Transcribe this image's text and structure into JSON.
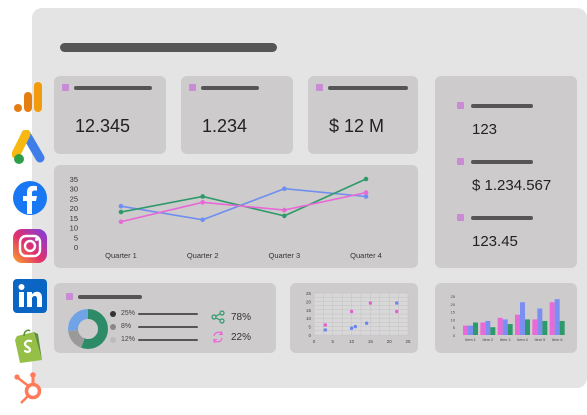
{
  "kpis": [
    "12.345",
    "1.234",
    "$ 12 M"
  ],
  "side_stats": [
    "123",
    "$ 1.234.567",
    "123.45"
  ],
  "chart_data": [
    {
      "type": "line",
      "categories": [
        "Quarter 1",
        "Quarter 2",
        "Quarter 3",
        "Quarter 4"
      ],
      "ylim": [
        0,
        35
      ],
      "yticks": [
        "35",
        "30",
        "25",
        "20",
        "15",
        "10",
        "5",
        "0"
      ],
      "series": [
        {
          "color": "#6f8ff0",
          "values": [
            21,
            14,
            30,
            26
          ]
        },
        {
          "color": "#2e9a6b",
          "values": [
            18,
            26,
            16,
            35
          ]
        },
        {
          "color": "#e868d6",
          "values": [
            13,
            23,
            19,
            28
          ]
        }
      ]
    },
    {
      "type": "pie",
      "slices": [
        {
          "label": "25%",
          "value": 25,
          "color": "#2e8b68"
        },
        {
          "label": "8%",
          "value": 8,
          "color": "#9a9a9a"
        },
        {
          "label": "12%",
          "value": 12,
          "color": "#6fa3e6"
        }
      ]
    },
    {
      "type": "scatter",
      "xticks": [
        "0",
        "5",
        "10",
        "15",
        "20",
        "25"
      ],
      "yticks": [
        "25",
        "20",
        "15",
        "10",
        "5",
        "0"
      ],
      "xlim": [
        0,
        25
      ],
      "ylim": [
        0,
        25
      ],
      "series": [
        {
          "color": "#e35fd0",
          "points": [
            [
              3,
              6
            ],
            [
              10,
              14
            ],
            [
              15,
              19
            ],
            [
              22,
              14
            ]
          ]
        },
        {
          "color": "#6a86ee",
          "points": [
            [
              3,
              3
            ],
            [
              10,
              4
            ],
            [
              11,
              5
            ],
            [
              14,
              7
            ],
            [
              22,
              19
            ]
          ]
        }
      ]
    },
    {
      "type": "bar",
      "categories": [
        "Item 1",
        "Item 2",
        "Item 3",
        "Item 4",
        "Item 5",
        "Item 6"
      ],
      "yticks": [
        "25",
        "20",
        "15",
        "10",
        "5",
        "0"
      ],
      "ylim": [
        0,
        25
      ],
      "series": [
        {
          "color": "#e86ad7",
          "values": [
            6,
            8,
            11,
            13,
            10,
            21
          ]
        },
        {
          "color": "#7b8ff2",
          "values": [
            6,
            9,
            10,
            21,
            17,
            23
          ]
        },
        {
          "color": "#2e9a6b",
          "values": [
            8,
            5,
            7,
            10,
            9,
            9
          ]
        }
      ]
    }
  ],
  "share_stat": "78%",
  "refresh_stat": "22%",
  "colors": {
    "accent_pink": "#c98bd6",
    "green": "#2e9a6b",
    "blue": "#6f8ff0",
    "magenta": "#e868d6"
  },
  "icons": [
    "google-analytics-icon",
    "google-ads-icon",
    "facebook-icon",
    "instagram-icon",
    "linkedin-icon",
    "shopify-icon",
    "hubspot-icon"
  ]
}
